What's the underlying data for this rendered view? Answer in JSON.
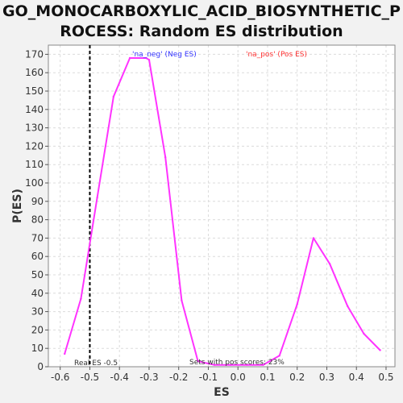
{
  "title_lines": [
    "GO_MONOCARBOXYLIC_ACID_BIOSYNTHETIC_P",
    "ROCESS: Random ES distribution"
  ],
  "colors": {
    "series": "#ff33ff",
    "neg_label": "#3333ff",
    "pos_label": "#ff3333",
    "real_es_line": "#000000",
    "plot_bg": "#ffffff",
    "grid": "#dcdcdc"
  },
  "chart_data": {
    "type": "line",
    "title": "GO_MONOCARBOXYLIC_ACID_BIOSYNTHETIC_PROCESS: Random ES distribution",
    "xlabel": "ES",
    "ylabel": "P(ES)",
    "xlim": [
      -0.64,
      0.53
    ],
    "ylim": [
      0,
      175
    ],
    "grid": true,
    "x_ticks": [
      -0.6,
      -0.5,
      -0.4,
      -0.3,
      -0.2,
      -0.1,
      0.0,
      0.1,
      0.2,
      0.3,
      0.4,
      0.5
    ],
    "x_tick_labels": [
      "-0.6",
      "-0.5",
      "-0.4",
      "-0.3",
      "-0.2",
      "-0.1",
      "0.0",
      "0.1",
      "0.2",
      "0.3",
      "0.4",
      "0.5"
    ],
    "y_ticks": [
      0,
      10,
      20,
      30,
      40,
      50,
      60,
      70,
      80,
      90,
      100,
      110,
      120,
      130,
      140,
      150,
      160,
      170
    ],
    "y_tick_labels": [
      "0",
      "10",
      "20",
      "30",
      "40",
      "50",
      "60",
      "70",
      "80",
      "90",
      "100",
      "110",
      "120",
      "130",
      "140",
      "150",
      "160",
      "170"
    ],
    "series": [
      {
        "x": [
          -0.585,
          -0.53,
          -0.475,
          -0.42,
          -0.365,
          -0.31,
          -0.3,
          -0.245,
          -0.19,
          -0.135,
          -0.08,
          -0.025,
          0.03,
          0.085,
          0.14,
          0.2,
          0.255,
          0.31,
          0.37,
          0.425,
          0.48
        ],
        "values": [
          7,
          37,
          92,
          147,
          168,
          168,
          167,
          114,
          36,
          3,
          1,
          1,
          1,
          1,
          6,
          34,
          70,
          56,
          33,
          18,
          9
        ]
      }
    ],
    "real_es": -0.5,
    "annotations": {
      "neg_label": "'na_neg' (Neg ES)",
      "pos_label": "'na_pos' (Pos ES)",
      "real_es_text": "Real ES -0.5",
      "pos_scores_text": "Sets with pos scores: 23%"
    }
  }
}
